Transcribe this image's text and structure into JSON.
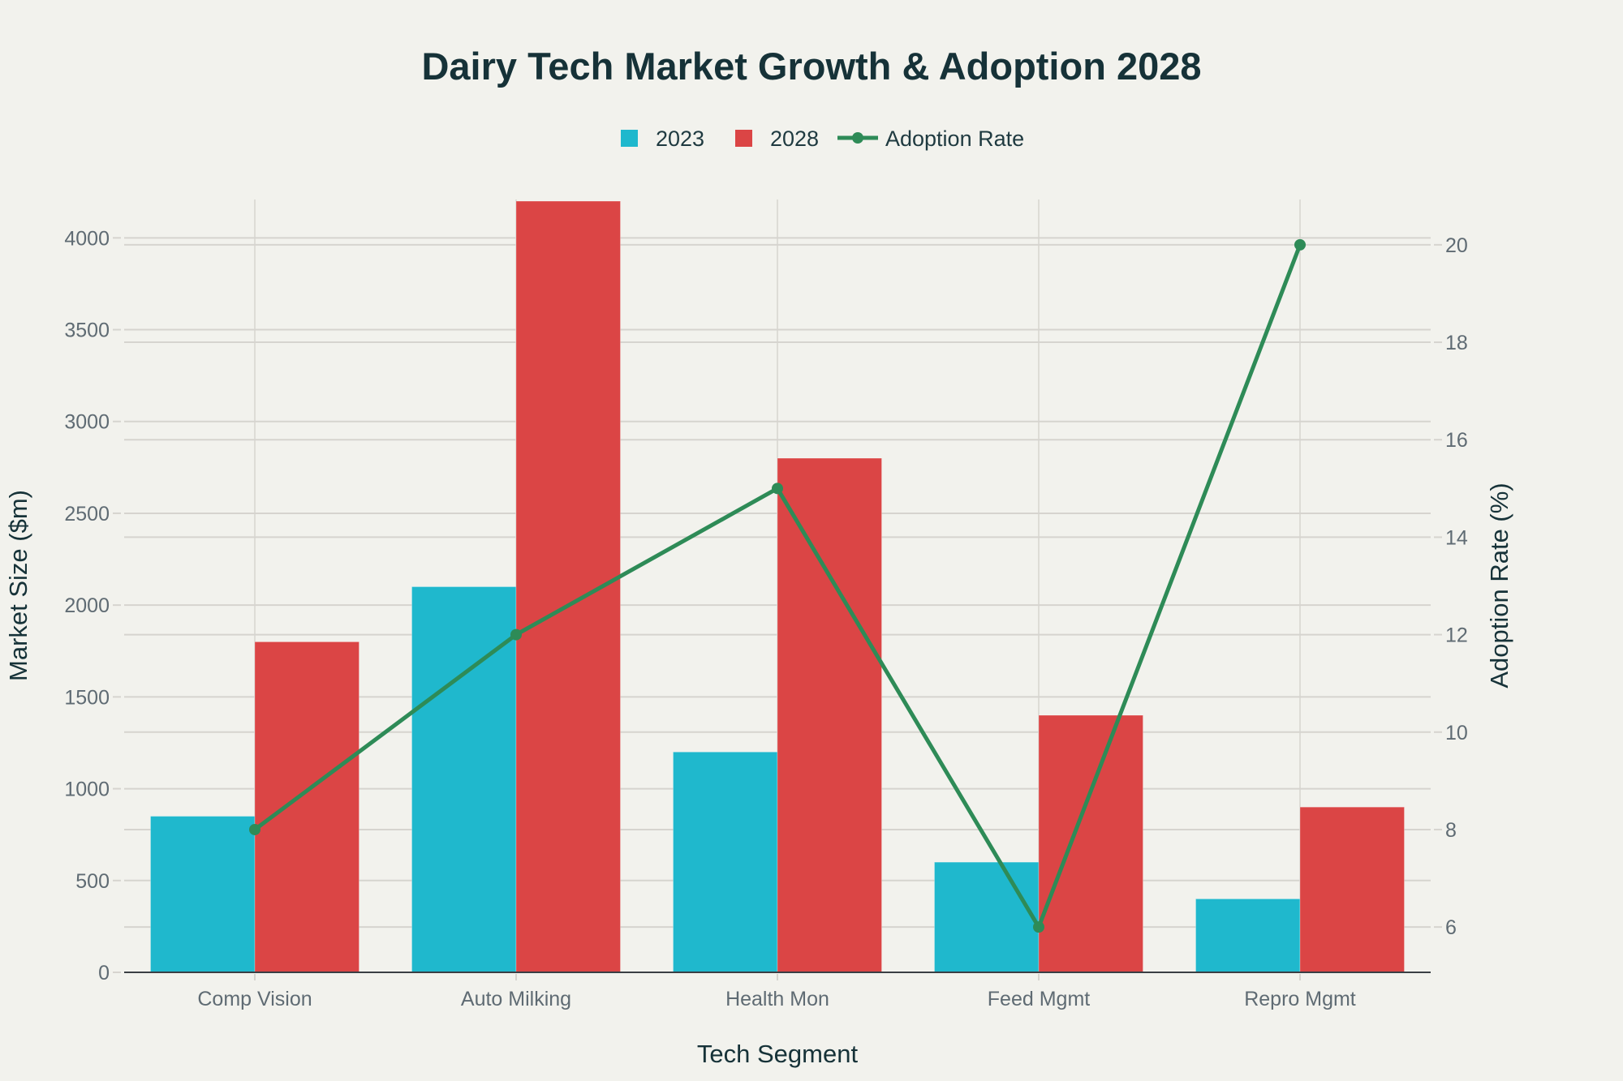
{
  "chart_data": {
    "type": "bar",
    "title": "Dairy Tech Market Growth & Adoption 2028",
    "xlabel": "Tech Segment",
    "ylabel": "Market Size ($m)",
    "y2label": "Adoption Rate (%)",
    "categories": [
      "Comp Vision",
      "Auto Milking",
      "Health Mon",
      "Feed Mgmt",
      "Repro Mgmt"
    ],
    "series": [
      {
        "name": "2023",
        "type": "bar",
        "axis": "left",
        "color": "#1fb8cd",
        "values": [
          850,
          2100,
          1200,
          600,
          400
        ]
      },
      {
        "name": "2028",
        "type": "bar",
        "axis": "left",
        "color": "#db4545",
        "values": [
          1800,
          4200,
          2800,
          1400,
          900
        ]
      },
      {
        "name": "Adoption Rate",
        "type": "line",
        "axis": "right",
        "color": "#2e8b57",
        "values": [
          8,
          12,
          15,
          6,
          20
        ]
      }
    ],
    "ylim": [
      0,
      4209
    ],
    "y2lim": [
      5.07,
      20.93
    ],
    "yticks": [
      0,
      500,
      1000,
      1500,
      2000,
      2500,
      3000,
      3500,
      4000
    ],
    "y2ticks": [
      6,
      8,
      10,
      12,
      14,
      16,
      18,
      20
    ],
    "grid": true,
    "legend_position": "top-center"
  }
}
